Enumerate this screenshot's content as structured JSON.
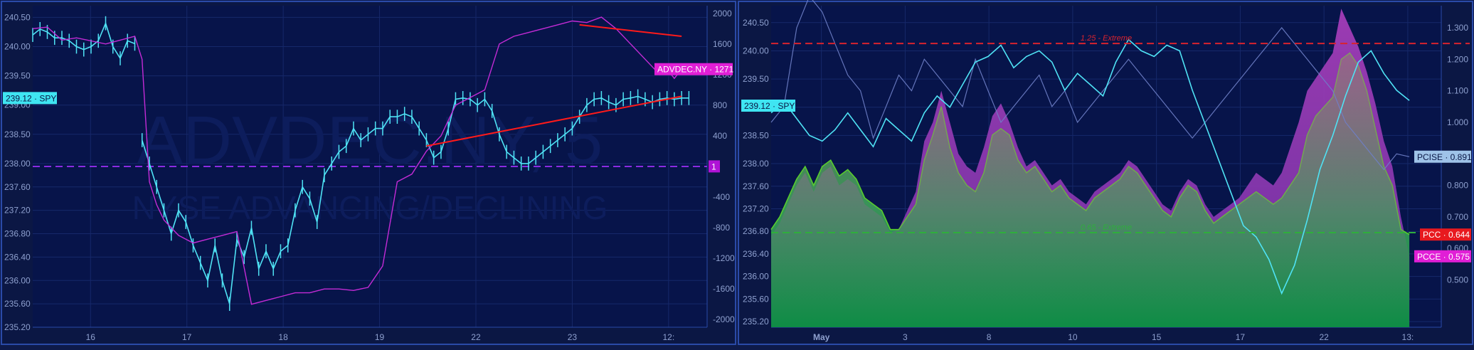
{
  "chart_data": [
    {
      "type": "candlestick+line",
      "watermark": {
        "line1": "ADVDEC.NY, 5",
        "line2": "NYSE ADVANCING/DECLINING"
      },
      "left_axis": {
        "min": 235.2,
        "max": 240.7,
        "ticks": [
          "240.50",
          "240.00",
          "239.50",
          "239.00",
          "238.50",
          "238.00",
          "237.60",
          "237.20",
          "236.80",
          "236.40",
          "236.00",
          "235.60",
          "235.20"
        ]
      },
      "right_axis": {
        "min": -2100,
        "max": 2100,
        "ticks": [
          "2000",
          "1600",
          "1200",
          "800",
          "400",
          "0",
          "-400",
          "-800",
          "-1200",
          "-1600",
          "-2000"
        ]
      },
      "x_ticks": [
        "16",
        "17",
        "18",
        "19",
        "22",
        "23",
        "12:"
      ],
      "badges": {
        "spy_label": "239.12 · SPY",
        "spy_value": 239.12,
        "advdec_label": "ADVDEC.NY · 1271",
        "advdec_value": 1271,
        "zero_label": "1",
        "zero_value": 1
      },
      "series": [
        {
          "name": "SPY",
          "axis": "left",
          "color": "#4fe3f5",
          "x": [
            0,
            2,
            4,
            6,
            8,
            10,
            12,
            14,
            16,
            18,
            20,
            22,
            24,
            26,
            28,
            29,
            30,
            32,
            34,
            36,
            38,
            40,
            42,
            44,
            46,
            48,
            50,
            52,
            54,
            56,
            58,
            60,
            62,
            64,
            66,
            68,
            70,
            72,
            74,
            76,
            78,
            80,
            82,
            84,
            86,
            88,
            90,
            92,
            94,
            96,
            98,
            100,
            102,
            104,
            106,
            108,
            110,
            112,
            114,
            116,
            118,
            120,
            122,
            124,
            126,
            128,
            130,
            132,
            134,
            136,
            138,
            140,
            142,
            144,
            146,
            148,
            150,
            152,
            154,
            156,
            158,
            160,
            162,
            164,
            166,
            168,
            170,
            172,
            174,
            176,
            178,
            180
          ],
          "y": [
            240.2,
            240.3,
            240.25,
            240.15,
            240.15,
            240.1,
            240.0,
            239.95,
            240.0,
            240.1,
            240.4,
            240.0,
            239.8,
            240.1,
            240.05,
            null,
            238.4,
            238.0,
            237.6,
            237.2,
            236.8,
            237.2,
            237.0,
            236.6,
            236.3,
            236.0,
            236.6,
            236.0,
            235.6,
            236.7,
            236.4,
            236.9,
            236.2,
            236.5,
            236.2,
            236.5,
            236.6,
            237.2,
            237.6,
            237.4,
            237.0,
            237.8,
            238.0,
            238.2,
            238.3,
            238.6,
            238.4,
            238.5,
            238.6,
            238.6,
            238.8,
            238.8,
            238.85,
            238.8,
            238.6,
            238.4,
            238.1,
            238.2,
            238.6,
            239.1,
            239.12,
            239.1,
            239.0,
            239.1,
            238.9,
            238.5,
            238.2,
            238.1,
            238.0,
            238.0,
            238.1,
            238.2,
            238.3,
            238.4,
            238.5,
            238.6,
            238.8,
            239.0,
            239.1,
            239.12,
            239.05,
            239.0,
            239.1,
            239.12,
            239.15,
            239.1,
            239.05,
            239.1,
            239.12,
            239.1,
            239.12,
            239.12
          ]
        },
        {
          "name": "ADVDEC.NY",
          "axis": "right",
          "color": "#c42bd6",
          "x": [
            0,
            4,
            8,
            12,
            16,
            20,
            24,
            28,
            30,
            32,
            34,
            36,
            38,
            40,
            44,
            48,
            52,
            56,
            60,
            64,
            68,
            72,
            76,
            80,
            84,
            88,
            92,
            96,
            100,
            104,
            108,
            112,
            116,
            120,
            124,
            128,
            130,
            132,
            136,
            140,
            144,
            148,
            152,
            156,
            160,
            164,
            168,
            172,
            174,
            176,
            178,
            180
          ],
          "y": [
            1800,
            1820,
            1650,
            1680,
            1640,
            1600,
            1650,
            1700,
            1400,
            -200,
            -500,
            -700,
            -800,
            -900,
            -1000,
            -950,
            -900,
            -850,
            -1800,
            -1750,
            -1700,
            -1650,
            -1650,
            -1600,
            -1600,
            -1620,
            -1580,
            -1300,
            -200,
            -100,
            200,
            400,
            800,
            900,
            1000,
            1600,
            1650,
            1700,
            1750,
            1800,
            1850,
            1900,
            1880,
            1950,
            1800,
            1600,
            1400,
            1200,
            1271,
            1150,
            1271,
            1271
          ]
        }
      ],
      "trend_lines": [
        {
          "from": [
            150,
            1850
          ],
          "to": [
            178,
            1700
          ],
          "axis": "right",
          "color": "#ff1a1a"
        },
        {
          "from": [
            108,
            238.3
          ],
          "to": [
            178,
            239.15
          ],
          "axis": "left",
          "color": "#ff1a1a"
        }
      ],
      "reference_line": {
        "axis": "right",
        "value": 0,
        "color": "#8a2be2"
      }
    },
    {
      "type": "area+line",
      "left_axis": {
        "min": 235.1,
        "max": 240.8,
        "ticks": [
          "240.50",
          "240.00",
          "239.50",
          "239.00",
          "238.50",
          "238.00",
          "237.60",
          "237.20",
          "236.80",
          "236.40",
          "236.00",
          "235.60",
          "235.20"
        ]
      },
      "right_axis": {
        "min": 0.35,
        "max": 1.37,
        "ticks": [
          "1.300",
          "1.200",
          "1.100",
          "1.000",
          "0.900",
          "0.800",
          "0.700",
          "0.600",
          "0.500"
        ]
      },
      "x_ticks": [
        "May",
        "3",
        "8",
        "10",
        "15",
        "17",
        "22",
        "13:"
      ],
      "x_tick_bold": "May",
      "hlines": [
        {
          "value": 1.25,
          "axis": "right",
          "label": "1.25 - Extreme",
          "color": "#d9232e"
        },
        {
          "value": 0.65,
          "axis": "right",
          "label": "0.65 - Extreme",
          "color": "#2fae3c"
        }
      ],
      "badges": {
        "spy_label": "239.12 · SPY",
        "pcise_label": "PCISE · 0.891",
        "pcise_value": 0.891,
        "pcc_label": "PCC · 0.644",
        "pcc_value": 0.644,
        "pcce_label": "PCCE · 0.575",
        "pcce_value": 0.575
      },
      "series": [
        {
          "name": "PCC",
          "axis": "right",
          "color": "#5ad12a",
          "x": [
            0,
            4,
            8,
            12,
            16,
            20,
            24,
            28,
            32,
            36,
            40,
            44,
            48,
            52,
            56,
            60,
            64,
            68,
            72,
            76,
            80,
            84,
            88,
            92,
            96,
            100,
            104,
            108,
            112,
            116,
            120,
            124,
            128,
            132,
            136,
            140,
            144,
            148,
            152,
            156,
            160,
            164,
            168,
            172,
            176,
            180,
            184,
            188,
            192,
            196,
            200,
            204,
            208,
            212,
            216,
            220,
            224,
            228,
            232,
            236,
            240,
            244,
            248,
            252,
            256,
            260,
            264,
            268,
            272,
            276,
            280,
            284,
            288,
            292,
            296,
            300
          ],
          "y": [
            0.66,
            0.7,
            0.76,
            0.82,
            0.86,
            0.8,
            0.86,
            0.88,
            0.83,
            0.85,
            0.82,
            0.76,
            0.74,
            0.72,
            0.66,
            0.66,
            0.7,
            0.74,
            0.88,
            0.96,
            1.05,
            0.92,
            0.84,
            0.8,
            0.78,
            0.84,
            0.96,
            0.98,
            0.96,
            0.88,
            0.84,
            0.86,
            0.82,
            0.78,
            0.8,
            0.76,
            0.74,
            0.72,
            0.76,
            0.78,
            0.8,
            0.82,
            0.86,
            0.84,
            0.8,
            0.76,
            0.72,
            0.7,
            0.76,
            0.8,
            0.78,
            0.72,
            0.68,
            0.7,
            0.72,
            0.74,
            0.76,
            0.78,
            0.76,
            0.74,
            0.76,
            0.8,
            0.84,
            0.96,
            1.02,
            1.05,
            1.08,
            1.2,
            1.22,
            1.18,
            1.1,
            0.98,
            0.86,
            0.8,
            0.66,
            0.644
          ]
        },
        {
          "name": "PCCE",
          "axis": "right",
          "color": "#b43ad9",
          "x": [
            0,
            4,
            8,
            12,
            16,
            20,
            24,
            28,
            32,
            36,
            40,
            44,
            48,
            52,
            56,
            60,
            64,
            68,
            72,
            76,
            80,
            84,
            88,
            92,
            96,
            100,
            104,
            108,
            112,
            116,
            120,
            124,
            128,
            132,
            136,
            140,
            144,
            148,
            152,
            156,
            160,
            164,
            168,
            172,
            176,
            180,
            184,
            188,
            192,
            196,
            200,
            204,
            208,
            212,
            216,
            220,
            224,
            228,
            232,
            236,
            240,
            244,
            248,
            252,
            256,
            260,
            264,
            268,
            272,
            276,
            280,
            284,
            288,
            292,
            296,
            300
          ],
          "y": [
            0.64,
            0.68,
            0.74,
            0.8,
            0.84,
            0.78,
            0.84,
            0.86,
            0.8,
            0.82,
            0.8,
            0.74,
            0.72,
            0.7,
            0.65,
            0.66,
            0.72,
            0.78,
            0.94,
            1.0,
            1.1,
            1.0,
            0.9,
            0.86,
            0.84,
            0.92,
            1.02,
            1.06,
            1.0,
            0.92,
            0.86,
            0.88,
            0.84,
            0.8,
            0.82,
            0.78,
            0.76,
            0.74,
            0.78,
            0.8,
            0.82,
            0.84,
            0.88,
            0.86,
            0.82,
            0.78,
            0.74,
            0.72,
            0.78,
            0.82,
            0.8,
            0.74,
            0.7,
            0.72,
            0.74,
            0.76,
            0.8,
            0.84,
            0.82,
            0.8,
            0.84,
            0.92,
            1.0,
            1.1,
            1.14,
            1.18,
            1.22,
            1.36,
            1.3,
            1.24,
            1.16,
            1.06,
            0.94,
            0.86,
            0.7,
            0.575
          ]
        },
        {
          "name": "PCISE",
          "axis": "right",
          "color": "#6f7fc8",
          "x": [
            0,
            6,
            12,
            18,
            24,
            30,
            36,
            42,
            48,
            54,
            60,
            66,
            72,
            78,
            84,
            90,
            96,
            102,
            108,
            114,
            120,
            126,
            132,
            138,
            144,
            150,
            156,
            162,
            168,
            174,
            180,
            186,
            192,
            198,
            204,
            210,
            216,
            222,
            228,
            234,
            240,
            246,
            252,
            258,
            264,
            270,
            276,
            282,
            288,
            294,
            300
          ],
          "y": [
            1.0,
            1.05,
            1.3,
            1.4,
            1.35,
            1.25,
            1.15,
            1.1,
            0.95,
            1.05,
            1.15,
            1.1,
            1.2,
            1.15,
            1.1,
            1.05,
            1.2,
            1.1,
            1.0,
            1.05,
            1.1,
            1.15,
            1.05,
            1.1,
            1.0,
            1.05,
            1.1,
            1.15,
            1.2,
            1.15,
            1.1,
            1.05,
            1.0,
            0.95,
            1.0,
            1.05,
            1.1,
            1.15,
            1.2,
            1.25,
            1.3,
            1.25,
            1.2,
            1.15,
            1.1,
            1.0,
            0.95,
            0.9,
            0.85,
            0.9,
            0.891
          ]
        },
        {
          "name": "SPY",
          "axis": "left",
          "color": "#4fe3f5",
          "x": [
            0,
            6,
            12,
            18,
            24,
            30,
            36,
            42,
            48,
            54,
            60,
            66,
            72,
            78,
            84,
            90,
            96,
            102,
            108,
            114,
            120,
            126,
            132,
            138,
            144,
            150,
            156,
            162,
            168,
            174,
            180,
            186,
            192,
            198,
            204,
            210,
            216,
            222,
            228,
            234,
            240,
            246,
            252,
            258,
            264,
            270,
            276,
            282,
            288,
            294,
            300
          ],
          "y": [
            238.9,
            239.1,
            238.8,
            238.5,
            238.4,
            238.6,
            238.9,
            238.6,
            238.3,
            238.8,
            238.6,
            238.4,
            238.9,
            239.2,
            239.0,
            239.4,
            239.8,
            239.9,
            240.1,
            239.7,
            239.9,
            240.0,
            239.8,
            239.3,
            239.6,
            239.4,
            239.2,
            239.8,
            240.2,
            240.0,
            239.9,
            240.1,
            240.0,
            239.3,
            238.7,
            238.1,
            237.5,
            236.9,
            236.7,
            236.3,
            235.7,
            236.2,
            237.0,
            237.9,
            238.5,
            239.2,
            239.8,
            240.0,
            239.6,
            239.3,
            239.12
          ]
        }
      ]
    }
  ]
}
